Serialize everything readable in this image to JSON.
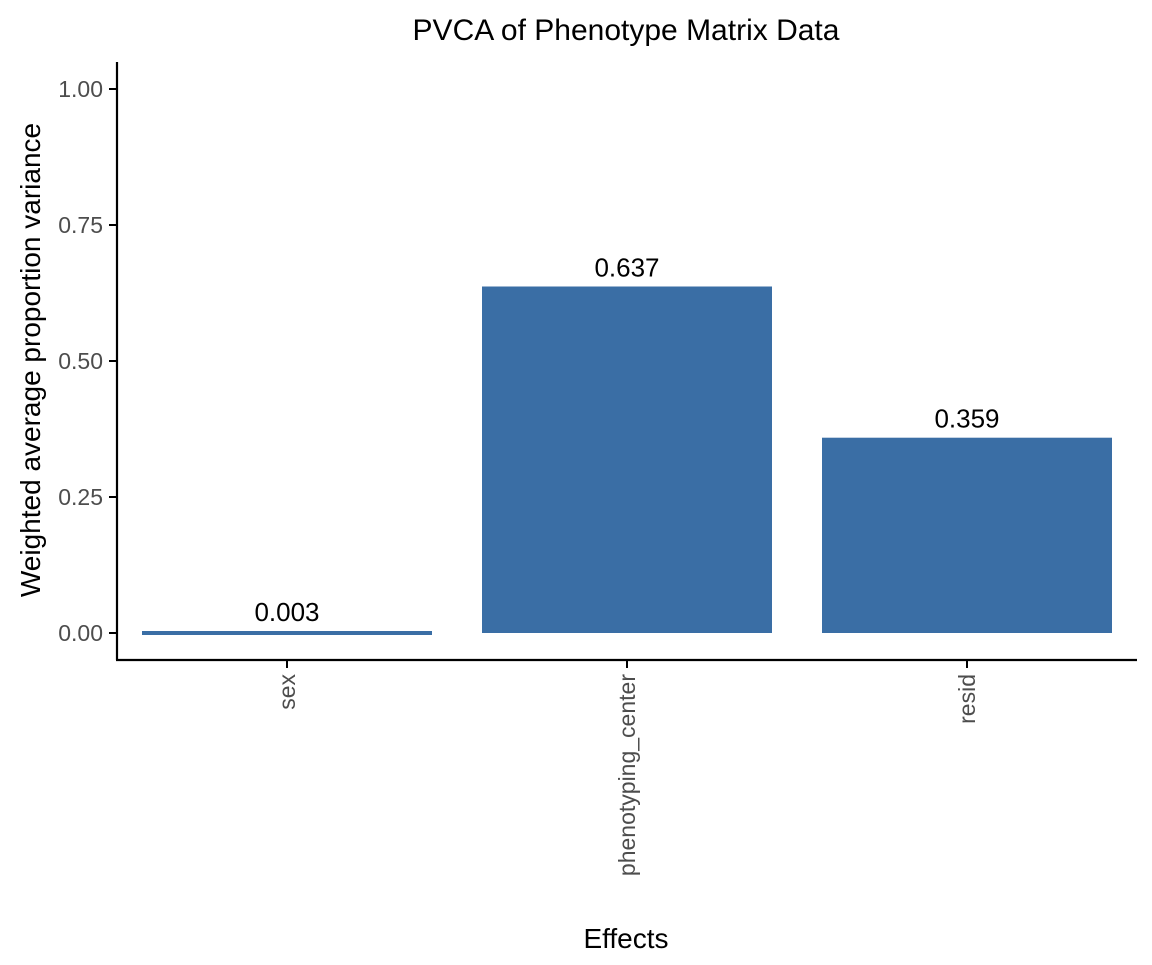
{
  "chart_data": {
    "type": "bar",
    "title": "PVCA of Phenotype Matrix Data",
    "xlabel": "Effects",
    "ylabel": "Weighted average proportion variance",
    "categories": [
      "sex",
      "phenotyping_center",
      "resid"
    ],
    "values": [
      0.003,
      0.637,
      0.359
    ],
    "data_labels": [
      "0.003",
      "0.637",
      "0.359"
    ],
    "ylim": [
      0,
      1.0
    ],
    "yticks": [
      0.0,
      0.25,
      0.5,
      0.75,
      1.0
    ],
    "ytick_labels": [
      "0.00",
      "0.25",
      "0.50",
      "0.75",
      "1.00"
    ],
    "grid": false,
    "legend": "none",
    "bar_color": "#3A6EA5",
    "axis_color": "#000000",
    "tick_label_color": "#4D4D4D",
    "x_tick_label_rotation": "vertical"
  }
}
